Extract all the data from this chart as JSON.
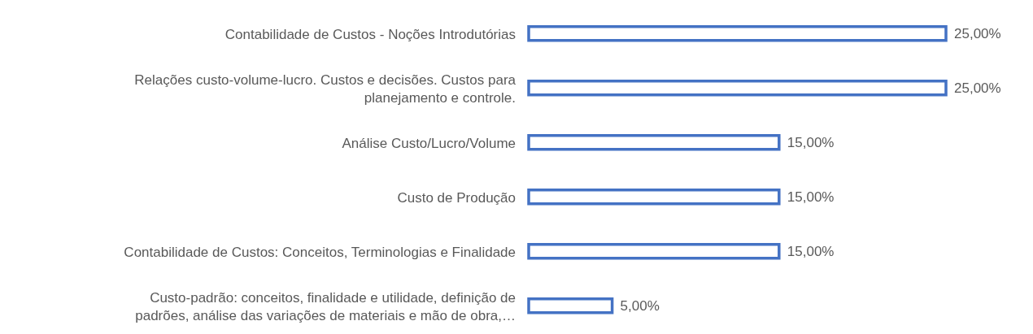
{
  "chart_data": {
    "type": "bar",
    "orientation": "horizontal",
    "categories": [
      "Contabilidade de Custos - Noções Introdutórias",
      "Relações custo-volume-lucro. Custos e decisões. Custos para planejamento e controle.",
      "Análise Custo/Lucro/Volume",
      "Custo de Produção",
      "Contabilidade de Custos: Conceitos, Terminologias e Finalidade",
      "Custo-padrão: conceitos, finalidade e utilidade, definição de padrões, análise das variações de materiais e mão de obra,…"
    ],
    "values": [
      25,
      25,
      15,
      15,
      15,
      5
    ],
    "value_labels": [
      "25,00%",
      "25,00%",
      "15,00%",
      "15,00%",
      "15,00%",
      "5,00%"
    ],
    "color": "#4472c4"
  }
}
